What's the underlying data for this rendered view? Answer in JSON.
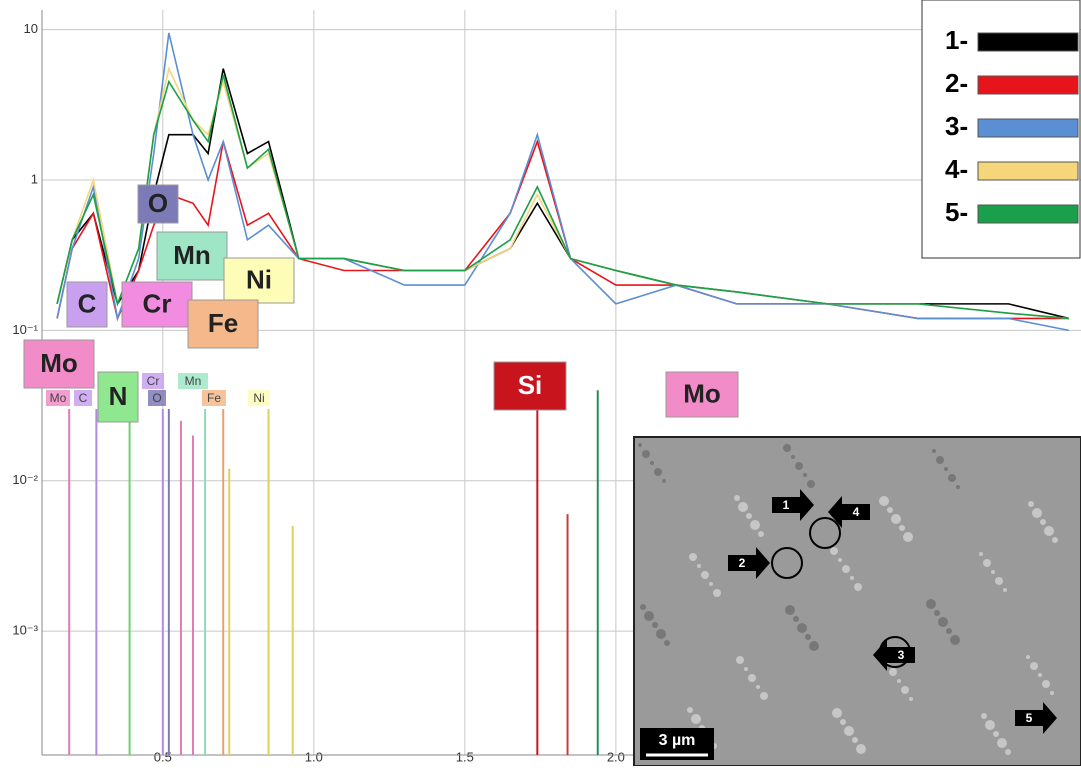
{
  "chart_data": {
    "type": "line",
    "log_y": true,
    "grid": true,
    "x": [
      0.15,
      0.2,
      0.27,
      0.35,
      0.42,
      0.47,
      0.52,
      0.6,
      0.65,
      0.7,
      0.78,
      0.85,
      0.95,
      1.1,
      1.3,
      1.5,
      1.65,
      1.74,
      1.85,
      2.0,
      2.2,
      2.4,
      2.7,
      3.0,
      3.3,
      3.5
    ],
    "series": [
      {
        "name": "1-",
        "color": "#000000",
        "values": [
          0.15,
          0.4,
          0.6,
          0.15,
          0.25,
          0.8,
          2.0,
          2.0,
          1.5,
          5.5,
          1.5,
          1.8,
          0.3,
          0.3,
          0.25,
          0.25,
          0.35,
          0.7,
          0.3,
          0.25,
          0.2,
          0.18,
          0.15,
          0.15,
          0.15,
          0.12
        ]
      },
      {
        "name": "2-",
        "color": "#e8141c",
        "values": [
          0.12,
          0.35,
          0.6,
          0.12,
          0.25,
          0.5,
          0.8,
          0.7,
          0.5,
          1.8,
          0.5,
          0.6,
          0.3,
          0.25,
          0.25,
          0.25,
          0.6,
          1.8,
          0.3,
          0.2,
          0.2,
          0.15,
          0.15,
          0.12,
          0.12,
          0.12
        ]
      },
      {
        "name": "3-",
        "color": "#5b8fd4",
        "values": [
          0.12,
          0.35,
          0.9,
          0.12,
          0.3,
          1.5,
          9.5,
          2.0,
          1.0,
          1.8,
          0.4,
          0.5,
          0.3,
          0.3,
          0.2,
          0.2,
          0.6,
          2.0,
          0.3,
          0.15,
          0.2,
          0.15,
          0.15,
          0.12,
          0.12,
          0.1
        ]
      },
      {
        "name": "4-",
        "color": "#f5d67a",
        "values": [
          0.15,
          0.4,
          1.0,
          0.15,
          0.35,
          2.0,
          5.5,
          2.5,
          2.0,
          4.5,
          1.2,
          1.5,
          0.3,
          0.3,
          0.25,
          0.25,
          0.35,
          0.8,
          0.3,
          0.25,
          0.2,
          0.18,
          0.15,
          0.15,
          0.13,
          0.12
        ]
      },
      {
        "name": "5-",
        "color": "#1aa04a",
        "values": [
          0.15,
          0.4,
          0.8,
          0.15,
          0.35,
          2.0,
          4.5,
          2.5,
          1.8,
          5.0,
          1.2,
          1.6,
          0.3,
          0.3,
          0.25,
          0.25,
          0.4,
          0.9,
          0.3,
          0.25,
          0.2,
          0.18,
          0.15,
          0.15,
          0.13,
          0.12
        ]
      }
    ],
    "xlim": [
      0.1,
      3.54
    ],
    "ylim": [
      0.00015,
      13.5
    ],
    "xticks": [
      0.5,
      {
        "value": 1,
        "label": "1.0"
      },
      1.5,
      {
        "value": 2,
        "label": "2.0"
      }
    ],
    "yticks": [
      {
        "value": 0.001,
        "label": "10⁻³"
      },
      {
        "value": 0.01,
        "label": "10⁻²"
      },
      {
        "value": 0.1,
        "label": "10⁻¹"
      },
      1,
      10
    ],
    "element_labels": [
      {
        "text": "O",
        "color": "#7d7ab8"
      },
      {
        "text": "Mn",
        "color": "#9fe6c6"
      },
      {
        "text": "Ni",
        "color": "#fdfdb8"
      },
      {
        "text": "C",
        "color": "#c9a0f0"
      },
      {
        "text": "Cr",
        "color": "#f28ce0"
      },
      {
        "text": "Fe",
        "color": "#f5b88a"
      },
      {
        "text": "Mo",
        "color": "#f28cc8"
      },
      {
        "text": "N",
        "color": "#8fe88f"
      },
      {
        "text": "Si",
        "color": "#c8141c"
      },
      {
        "text": "Mo",
        "color": "#f28cc8"
      }
    ],
    "element_tags": [
      {
        "text": "Mo",
        "color": "#f28cc8"
      },
      {
        "text": "C",
        "color": "#c9a0f0"
      },
      {
        "text": "Cr",
        "color": "#c9a0f0"
      },
      {
        "text": "O",
        "color": "#7d7ab8"
      },
      {
        "text": "Mn",
        "color": "#9fe6c6"
      },
      {
        "text": "Fe",
        "color": "#f5b88a"
      },
      {
        "text": "Ni",
        "color": "#fdfdb8"
      }
    ],
    "element_lines": [
      {
        "x": 0.19,
        "top": 0.03,
        "color": "#e07ab8"
      },
      {
        "x": 0.28,
        "top": 0.03,
        "color": "#b48ae0"
      },
      {
        "x": 0.39,
        "top": 0.03,
        "color": "#6fd06f"
      },
      {
        "x": 0.5,
        "top": 0.03,
        "color": "#b48ae0"
      },
      {
        "x": 0.52,
        "top": 0.03,
        "color": "#7d7ab8"
      },
      {
        "x": 0.56,
        "top": 0.025,
        "color": "#e07ab8"
      },
      {
        "x": 0.6,
        "top": 0.02,
        "color": "#e07ab8"
      },
      {
        "x": 0.64,
        "top": 0.03,
        "color": "#8fd8b8"
      },
      {
        "x": 0.7,
        "top": 0.03,
        "color": "#e8a070"
      },
      {
        "x": 0.72,
        "top": 0.012,
        "color": "#e0d060"
      },
      {
        "x": 0.85,
        "top": 0.03,
        "color": "#e0d060"
      },
      {
        "x": 0.93,
        "top": 0.005,
        "color": "#e0d060"
      },
      {
        "x": 1.74,
        "top": 0.03,
        "color": "#c8141c"
      },
      {
        "x": 1.84,
        "top": 0.006,
        "color": "#c04040"
      },
      {
        "x": 1.94,
        "top": 0.04,
        "color": "#2a8a5a"
      }
    ]
  },
  "inset": {
    "labels": [
      "1",
      "2",
      "3",
      "4",
      "5"
    ],
    "scale": "3 µm"
  }
}
